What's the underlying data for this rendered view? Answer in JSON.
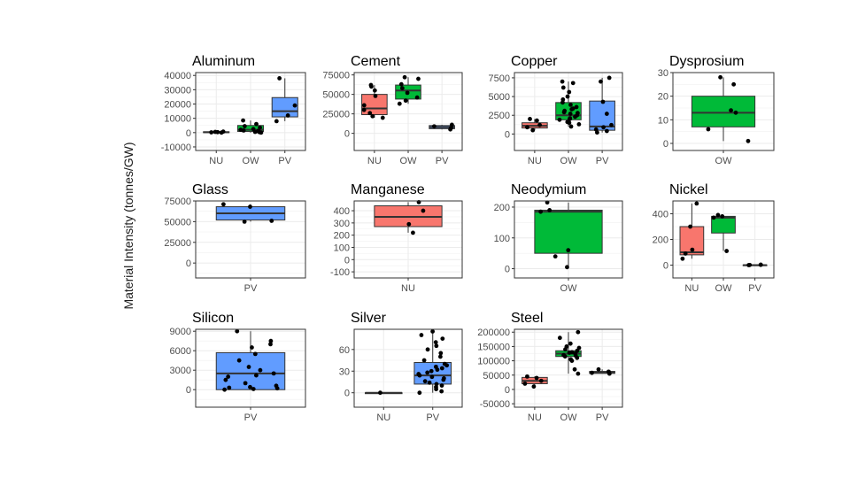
{
  "figure": {
    "ylabel": "Material Intensity (tonnes/GW)"
  },
  "colors": {
    "NU": "#F8766D",
    "OW": "#00BA38",
    "PV": "#619CFF"
  },
  "chart_data": [
    {
      "type": "box",
      "title": "Aluminum",
      "categories": [
        "NU",
        "OW",
        "PV"
      ],
      "yticks": [
        -10000,
        0,
        10000,
        20000,
        30000,
        40000
      ],
      "ylim": [
        -12500,
        42000
      ],
      "boxes": [
        {
          "category": "NU",
          "q1": 0,
          "median": 300,
          "q3": 600,
          "whisker_low": 0,
          "whisker_high": 700,
          "points": [
            0,
            300,
            500,
            200,
            700
          ]
        },
        {
          "category": "OW",
          "q1": 800,
          "median": 2000,
          "q3": 5000,
          "whisker_low": 0,
          "whisker_high": 8500,
          "points": [
            0,
            500,
            800,
            1200,
            2000,
            2500,
            3500,
            4500,
            6000,
            8500,
            300,
            1500
          ]
        },
        {
          "category": "PV",
          "q1": 11000,
          "median": 15000,
          "q3": 24500,
          "whisker_low": 8000,
          "whisker_high": 38000,
          "points": [
            8000,
            12000,
            19000,
            38000
          ]
        }
      ]
    },
    {
      "type": "box",
      "title": "Cement",
      "categories": [
        "NU",
        "OW",
        "PV"
      ],
      "yticks": [
        0,
        25000,
        50000,
        75000
      ],
      "ylim": [
        -22000,
        78000
      ],
      "boxes": [
        {
          "category": "NU",
          "q1": 24000,
          "median": 32000,
          "q3": 50000,
          "whisker_low": 20000,
          "whisker_high": 62000,
          "points": [
            20000,
            22000,
            26000,
            30000,
            36000,
            48000,
            55000,
            60000,
            62000
          ]
        },
        {
          "category": "OW",
          "q1": 44000,
          "median": 55000,
          "q3": 62000,
          "whisker_low": 38000,
          "whisker_high": 72000,
          "points": [
            38000,
            42000,
            46000,
            52000,
            58000,
            63000,
            70000,
            72000
          ]
        },
        {
          "category": "PV",
          "q1": 6000,
          "median": 8000,
          "q3": 10000,
          "whisker_low": 5000,
          "whisker_high": 11000,
          "points": [
            5000,
            7000,
            9000,
            11000
          ]
        }
      ]
    },
    {
      "type": "box",
      "title": "Copper",
      "categories": [
        "NU",
        "OW",
        "PV"
      ],
      "yticks": [
        0,
        2500,
        5000,
        7500
      ],
      "ylim": [
        -2200,
        8200
      ],
      "boxes": [
        {
          "category": "NU",
          "q1": 800,
          "median": 1100,
          "q3": 1500,
          "whisker_low": 500,
          "whisker_high": 2000,
          "points": [
            500,
            900,
            1200,
            1800,
            2000
          ]
        },
        {
          "category": "OW",
          "q1": 1900,
          "median": 2500,
          "q3": 4200,
          "whisker_low": 1000,
          "whisker_high": 7000,
          "points": [
            1000,
            1300,
            1600,
            1900,
            2100,
            2300,
            2500,
            2700,
            2900,
            3100,
            3300,
            3600,
            3900,
            4200,
            4600,
            5000,
            5600,
            6200,
            6800,
            7000,
            2000,
            2800,
            3400,
            1500
          ]
        },
        {
          "category": "PV",
          "q1": 500,
          "median": 1000,
          "q3": 4400,
          "whisker_low": 200,
          "whisker_high": 7500,
          "points": [
            200,
            400,
            600,
            900,
            1200,
            2700,
            4300,
            7000,
            7500
          ]
        }
      ]
    },
    {
      "type": "box",
      "title": "Dysprosium",
      "categories": [
        "OW"
      ],
      "yticks": [
        0,
        10,
        20,
        30
      ],
      "ylim": [
        -3,
        30
      ],
      "boxes": [
        {
          "category": "OW",
          "q1": 7,
          "median": 13,
          "q3": 20,
          "whisker_low": 1,
          "whisker_high": 28,
          "points": [
            1,
            6,
            13,
            14,
            25,
            28
          ]
        }
      ]
    },
    {
      "type": "box",
      "title": "Glass",
      "categories": [
        "PV"
      ],
      "yticks": [
        0,
        25000,
        50000,
        75000
      ],
      "ylim": [
        -18000,
        75000
      ],
      "boxes": [
        {
          "category": "PV",
          "q1": 52000,
          "median": 60000,
          "q3": 68000,
          "whisker_low": 50000,
          "whisker_high": 71000,
          "points": [
            50000,
            51000,
            68000,
            71000
          ]
        }
      ]
    },
    {
      "type": "box",
      "title": "Manganese",
      "categories": [
        "NU"
      ],
      "yticks": [
        -100,
        0,
        100,
        200,
        300,
        400
      ],
      "ylim": [
        -150,
        480
      ],
      "boxes": [
        {
          "category": "NU",
          "q1": 270,
          "median": 350,
          "q3": 440,
          "whisker_low": 220,
          "whisker_high": 470,
          "points": [
            220,
            290,
            400,
            470
          ]
        }
      ]
    },
    {
      "type": "box",
      "title": "Neodymium",
      "categories": [
        "OW"
      ],
      "yticks": [
        0,
        100,
        200
      ],
      "ylim": [
        -30,
        220
      ],
      "boxes": [
        {
          "category": "OW",
          "q1": 50,
          "median": 185,
          "q3": 190,
          "whisker_low": 5,
          "whisker_high": 215,
          "points": [
            5,
            40,
            60,
            185,
            190,
            215
          ]
        }
      ]
    },
    {
      "type": "box",
      "title": "Nickel",
      "categories": [
        "NU",
        "OW",
        "PV"
      ],
      "yticks": [
        0,
        200,
        400
      ],
      "ylim": [
        -100,
        500
      ],
      "boxes": [
        {
          "category": "NU",
          "q1": 80,
          "median": 100,
          "q3": 300,
          "whisker_low": 50,
          "whisker_high": 480,
          "points": [
            50,
            90,
            120,
            300,
            480
          ]
        },
        {
          "category": "OW",
          "q1": 250,
          "median": 370,
          "q3": 380,
          "whisker_low": 110,
          "whisker_high": 390,
          "points": [
            110,
            370,
            380,
            390
          ]
        },
        {
          "category": "PV",
          "q1": 0,
          "median": 0,
          "q3": 2,
          "whisker_low": 0,
          "whisker_high": 3,
          "points": [
            0,
            1,
            2,
            3
          ]
        }
      ]
    },
    {
      "type": "box",
      "title": "Silicon",
      "categories": [
        "PV"
      ],
      "yticks": [
        0,
        3000,
        6000,
        9000
      ],
      "ylim": [
        -2700,
        9300
      ],
      "boxes": [
        {
          "category": "PV",
          "q1": 0,
          "median": 2500,
          "q3": 5700,
          "whisker_low": 0,
          "whisker_high": 9000,
          "points": [
            0,
            100,
            200,
            300,
            400,
            600,
            1000,
            1500,
            2000,
            2500,
            3000,
            3500,
            4500,
            5500,
            6500,
            7000,
            7500,
            9000,
            2200
          ]
        }
      ]
    },
    {
      "type": "box",
      "title": "Silver",
      "categories": [
        "NU",
        "PV"
      ],
      "yticks": [
        0,
        30,
        60
      ],
      "ylim": [
        -20,
        88
      ],
      "boxes": [
        {
          "category": "NU",
          "q1": 0,
          "median": 0,
          "q3": 0,
          "whisker_low": 0,
          "whisker_high": 0,
          "points": [
            0
          ]
        },
        {
          "category": "PV",
          "q1": 12,
          "median": 24,
          "q3": 42,
          "whisker_low": 0,
          "whisker_high": 85,
          "points": [
            0,
            2,
            5,
            8,
            10,
            12,
            14,
            16,
            18,
            20,
            22,
            24,
            26,
            28,
            30,
            32,
            34,
            36,
            38,
            40,
            45,
            50,
            55,
            60,
            65,
            70,
            75,
            80,
            85
          ]
        }
      ]
    },
    {
      "type": "box",
      "title": "Steel",
      "categories": [
        "NU",
        "OW",
        "PV"
      ],
      "yticks": [
        -50000,
        0,
        50000,
        100000,
        150000,
        200000
      ],
      "ylim": [
        -62000,
        210000
      ],
      "boxes": [
        {
          "category": "NU",
          "q1": 20000,
          "median": 30000,
          "q3": 42000,
          "whisker_low": 10000,
          "whisker_high": 45000,
          "points": [
            10000,
            20000,
            30000,
            40000,
            45000
          ]
        },
        {
          "category": "OW",
          "q1": 115000,
          "median": 125000,
          "q3": 135000,
          "whisker_low": 55000,
          "whisker_high": 200000,
          "points": [
            55000,
            70000,
            100000,
            110000,
            115000,
            120000,
            125000,
            130000,
            135000,
            140000,
            145000,
            150000,
            160000,
            180000,
            200000,
            105000,
            128000,
            118000
          ]
        },
        {
          "category": "PV",
          "q1": 56000,
          "median": 60000,
          "q3": 63000,
          "whisker_low": 55000,
          "whisker_high": 70000,
          "points": [
            55000,
            58000,
            62000,
            70000
          ]
        }
      ]
    }
  ]
}
